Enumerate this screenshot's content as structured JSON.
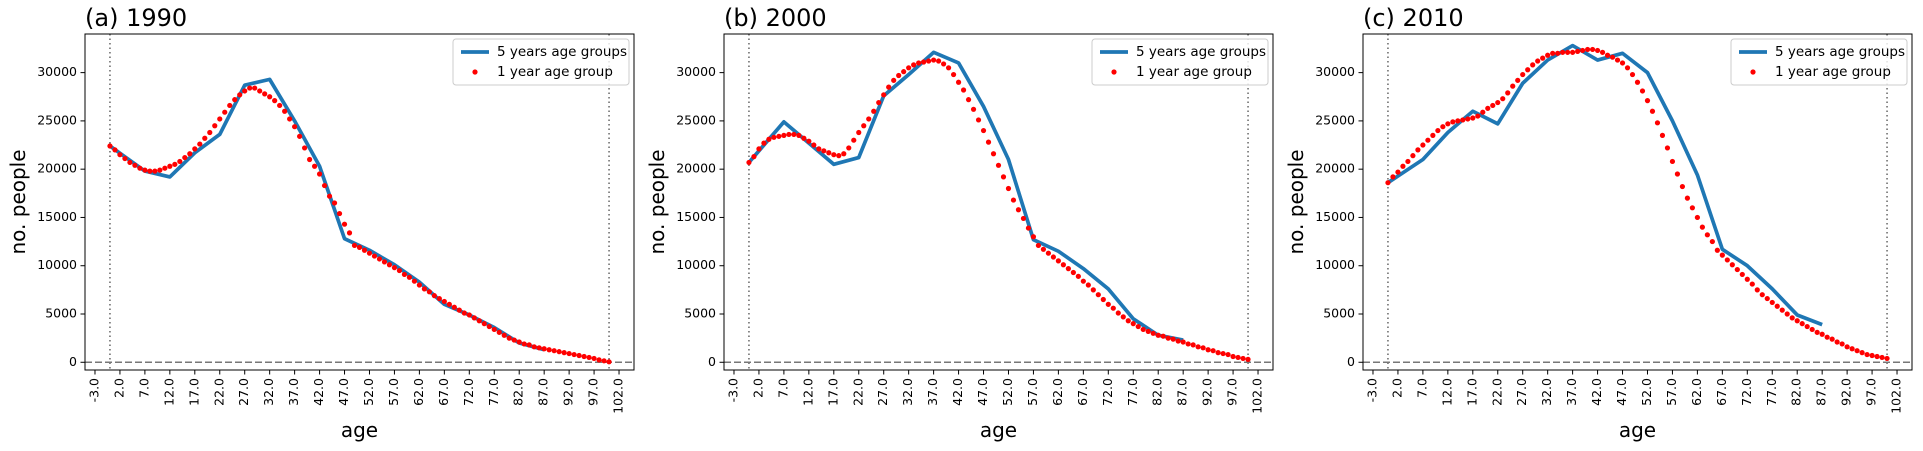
{
  "chart_data": [
    {
      "type": "line",
      "title": "(a) 1990",
      "xlabel": "age",
      "ylabel": "no. people",
      "legend": "upper right",
      "grid": false,
      "xlim": [
        -5,
        105
      ],
      "ylim": [
        -800,
        34000
      ],
      "xticks": [
        {
          "value": -3,
          "label": "-3.0"
        },
        {
          "value": 2,
          "label": "2.0"
        },
        {
          "value": 7,
          "label": "7.0"
        },
        {
          "value": 12,
          "label": "12.0"
        },
        {
          "value": 17,
          "label": "17.0"
        },
        {
          "value": 22,
          "label": "22.0"
        },
        {
          "value": 27,
          "label": "27.0"
        },
        {
          "value": 32,
          "label": "32.0"
        },
        {
          "value": 37,
          "label": "37.0"
        },
        {
          "value": 42,
          "label": "42.0"
        },
        {
          "value": 47,
          "label": "47.0"
        },
        {
          "value": 52,
          "label": "52.0"
        },
        {
          "value": 57,
          "label": "57.0"
        },
        {
          "value": 62,
          "label": "62.0"
        },
        {
          "value": 67,
          "label": "67.0"
        },
        {
          "value": 72,
          "label": "72.0"
        },
        {
          "value": 77,
          "label": "77.0"
        },
        {
          "value": 82,
          "label": "82.0"
        },
        {
          "value": 87,
          "label": "87.0"
        },
        {
          "value": 92,
          "label": "92.0"
        },
        {
          "value": 97,
          "label": "97.0"
        },
        {
          "value": 102,
          "label": "102.0"
        }
      ],
      "yticks": [
        0,
        5000,
        10000,
        15000,
        20000,
        25000,
        30000
      ],
      "xlines": [
        0,
        100
      ],
      "ylines": [
        0
      ],
      "series": [
        {
          "name": "5 years age groups",
          "type": "line",
          "color": "#1f77b4",
          "x": [
            0,
            7,
            12,
            17,
            22,
            27,
            32,
            37,
            42,
            47,
            52,
            57,
            62,
            67,
            72,
            77,
            82,
            87
          ],
          "values": [
            22400,
            19800,
            19200,
            21700,
            23600,
            28700,
            29300,
            25000,
            20300,
            12800,
            11600,
            10100,
            8300,
            6000,
            4900,
            3600,
            2000,
            1300
          ]
        },
        {
          "name": "1 year age group",
          "type": "scatter",
          "color": "#ff0000",
          "x": [
            0,
            1,
            2,
            3,
            4,
            5,
            6,
            7,
            8,
            9,
            10,
            11,
            12,
            13,
            14,
            15,
            16,
            17,
            18,
            19,
            20,
            21,
            22,
            23,
            24,
            25,
            26,
            27,
            28,
            29,
            30,
            31,
            32,
            33,
            34,
            35,
            36,
            37,
            38,
            39,
            40,
            41,
            42,
            43,
            44,
            45,
            46,
            47,
            48,
            49,
            50,
            51,
            52,
            53,
            54,
            55,
            56,
            57,
            58,
            59,
            60,
            61,
            62,
            63,
            64,
            65,
            66,
            67,
            68,
            69,
            70,
            71,
            72,
            73,
            74,
            75,
            76,
            77,
            78,
            79,
            80,
            81,
            82,
            83,
            84,
            85,
            86,
            87,
            88,
            89,
            90,
            91,
            92,
            93,
            94,
            95,
            96,
            97,
            98,
            99,
            100
          ],
          "values": [
            22400,
            22000,
            21500,
            21100,
            20700,
            20400,
            20100,
            19900,
            19800,
            19800,
            19900,
            20100,
            20300,
            20500,
            20800,
            21200,
            21600,
            22100,
            22600,
            23200,
            23800,
            24500,
            25200,
            25900,
            26600,
            27200,
            27700,
            28100,
            28400,
            28400,
            28100,
            27800,
            27500,
            27100,
            26600,
            26000,
            25200,
            24400,
            23400,
            22200,
            21000,
            20300,
            19500,
            18300,
            17200,
            16500,
            15400,
            14300,
            13400,
            12100,
            11900,
            11600,
            11300,
            11000,
            10700,
            10400,
            10100,
            9800,
            9500,
            9100,
            8800,
            8400,
            8000,
            7600,
            7300,
            6900,
            6600,
            6300,
            6000,
            5700,
            5400,
            5100,
            4900,
            4600,
            4300,
            4000,
            3700,
            3400,
            3100,
            2800,
            2500,
            2300,
            2100,
            1900,
            1800,
            1600,
            1500,
            1400,
            1300,
            1200,
            1100,
            1000,
            900,
            800,
            700,
            600,
            500,
            400,
            250,
            150,
            50
          ]
        }
      ]
    },
    {
      "type": "line",
      "title": "(b) 2000",
      "xlabel": "age",
      "ylabel": "no. people",
      "legend": "upper right",
      "grid": false,
      "xlim": [
        -5,
        105
      ],
      "ylim": [
        -800,
        34000
      ],
      "xticks": [
        {
          "value": -3,
          "label": "-3.0"
        },
        {
          "value": 2,
          "label": "2.0"
        },
        {
          "value": 7,
          "label": "7.0"
        },
        {
          "value": 12,
          "label": "12.0"
        },
        {
          "value": 17,
          "label": "17.0"
        },
        {
          "value": 22,
          "label": "22.0"
        },
        {
          "value": 27,
          "label": "27.0"
        },
        {
          "value": 32,
          "label": "32.0"
        },
        {
          "value": 37,
          "label": "37.0"
        },
        {
          "value": 42,
          "label": "42.0"
        },
        {
          "value": 47,
          "label": "47.0"
        },
        {
          "value": 52,
          "label": "52.0"
        },
        {
          "value": 57,
          "label": "57.0"
        },
        {
          "value": 62,
          "label": "62.0"
        },
        {
          "value": 67,
          "label": "67.0"
        },
        {
          "value": 72,
          "label": "72.0"
        },
        {
          "value": 77,
          "label": "77.0"
        },
        {
          "value": 82,
          "label": "82.0"
        },
        {
          "value": 87,
          "label": "87.0"
        },
        {
          "value": 92,
          "label": "92.0"
        },
        {
          "value": 97,
          "label": "97.0"
        },
        {
          "value": 102,
          "label": "102.0"
        }
      ],
      "yticks": [
        0,
        5000,
        10000,
        15000,
        20000,
        25000,
        30000
      ],
      "xlines": [
        0,
        100
      ],
      "ylines": [
        0
      ],
      "series": [
        {
          "name": "5 years age groups",
          "type": "line",
          "color": "#1f77b4",
          "x": [
            0,
            7,
            12,
            17,
            22,
            27,
            32,
            37,
            42,
            47,
            52,
            57,
            62,
            67,
            72,
            77,
            82,
            87
          ],
          "values": [
            20700,
            24900,
            22700,
            20500,
            21200,
            27600,
            29800,
            32100,
            31000,
            26500,
            21000,
            12700,
            11500,
            9700,
            7600,
            4500,
            2800,
            2300
          ]
        },
        {
          "name": "1 year age group",
          "type": "scatter",
          "color": "#ff0000",
          "x": [
            0,
            1,
            2,
            3,
            4,
            5,
            6,
            7,
            8,
            9,
            10,
            11,
            12,
            13,
            14,
            15,
            16,
            17,
            18,
            19,
            20,
            21,
            22,
            23,
            24,
            25,
            26,
            27,
            28,
            29,
            30,
            31,
            32,
            33,
            34,
            35,
            36,
            37,
            38,
            39,
            40,
            41,
            42,
            43,
            44,
            45,
            46,
            47,
            48,
            49,
            50,
            51,
            52,
            53,
            54,
            55,
            56,
            57,
            58,
            59,
            60,
            61,
            62,
            63,
            64,
            65,
            66,
            67,
            68,
            69,
            70,
            71,
            72,
            73,
            74,
            75,
            76,
            77,
            78,
            79,
            80,
            81,
            82,
            83,
            84,
            85,
            86,
            87,
            88,
            89,
            90,
            91,
            92,
            93,
            94,
            95,
            96,
            97,
            98,
            99,
            100
          ],
          "values": [
            20700,
            21300,
            22100,
            22700,
            23100,
            23300,
            23400,
            23500,
            23600,
            23600,
            23500,
            23200,
            22900,
            22500,
            22100,
            21900,
            21700,
            21500,
            21400,
            21600,
            22200,
            23000,
            23800,
            24500,
            25200,
            26000,
            26900,
            27700,
            28500,
            29200,
            29700,
            30100,
            30500,
            30800,
            31000,
            31100,
            31200,
            31300,
            31200,
            30900,
            30500,
            29800,
            29000,
            28200,
            27200,
            26200,
            25100,
            24000,
            22800,
            21600,
            20400,
            19200,
            18000,
            16800,
            15800,
            14900,
            13900,
            13000,
            12100,
            11700,
            11300,
            10900,
            10500,
            10100,
            9700,
            9300,
            8900,
            8400,
            8000,
            7500,
            7000,
            6500,
            6000,
            5600,
            5100,
            4700,
            4300,
            4000,
            3700,
            3400,
            3200,
            3000,
            2800,
            2700,
            2500,
            2400,
            2200,
            2100,
            1900,
            1800,
            1600,
            1500,
            1300,
            1200,
            1000,
            900,
            800,
            600,
            500,
            400,
            300
          ]
        }
      ]
    },
    {
      "type": "line",
      "title": "(c) 2010",
      "xlabel": "age",
      "ylabel": "no. people",
      "legend": "upper right",
      "grid": false,
      "xlim": [
        -5,
        105
      ],
      "ylim": [
        -800,
        34000
      ],
      "xticks": [
        {
          "value": -3,
          "label": "-3.0"
        },
        {
          "value": 2,
          "label": "2.0"
        },
        {
          "value": 7,
          "label": "7.0"
        },
        {
          "value": 12,
          "label": "12.0"
        },
        {
          "value": 17,
          "label": "17.0"
        },
        {
          "value": 22,
          "label": "22.0"
        },
        {
          "value": 27,
          "label": "27.0"
        },
        {
          "value": 32,
          "label": "32.0"
        },
        {
          "value": 37,
          "label": "37.0"
        },
        {
          "value": 42,
          "label": "42.0"
        },
        {
          "value": 47,
          "label": "47.0"
        },
        {
          "value": 52,
          "label": "52.0"
        },
        {
          "value": 57,
          "label": "57.0"
        },
        {
          "value": 62,
          "label": "62.0"
        },
        {
          "value": 67,
          "label": "67.0"
        },
        {
          "value": 72,
          "label": "72.0"
        },
        {
          "value": 77,
          "label": "77.0"
        },
        {
          "value": 82,
          "label": "82.0"
        },
        {
          "value": 87,
          "label": "87.0"
        },
        {
          "value": 92,
          "label": "92.0"
        },
        {
          "value": 97,
          "label": "97.0"
        },
        {
          "value": 102,
          "label": "102.0"
        }
      ],
      "yticks": [
        0,
        5000,
        10000,
        15000,
        20000,
        25000,
        30000
      ],
      "xlines": [
        0,
        100
      ],
      "ylines": [
        0
      ],
      "series": [
        {
          "name": "5 years age groups",
          "type": "line",
          "color": "#1f77b4",
          "x": [
            0,
            7,
            12,
            17,
            22,
            27,
            32,
            37,
            42,
            47,
            52,
            57,
            62,
            67,
            72,
            77,
            82,
            87
          ],
          "values": [
            18600,
            21000,
            23800,
            26000,
            24700,
            28900,
            31300,
            32800,
            31300,
            32000,
            30000,
            25000,
            19400,
            11700,
            10000,
            7600,
            4900,
            3900
          ]
        },
        {
          "name": "1 year age group",
          "type": "scatter",
          "color": "#ff0000",
          "x": [
            0,
            1,
            2,
            3,
            4,
            5,
            6,
            7,
            8,
            9,
            10,
            11,
            12,
            13,
            14,
            15,
            16,
            17,
            18,
            19,
            20,
            21,
            22,
            23,
            24,
            25,
            26,
            27,
            28,
            29,
            30,
            31,
            32,
            33,
            34,
            35,
            36,
            37,
            38,
            39,
            40,
            41,
            42,
            43,
            44,
            45,
            46,
            47,
            48,
            49,
            50,
            51,
            52,
            53,
            54,
            55,
            56,
            57,
            58,
            59,
            60,
            61,
            62,
            63,
            64,
            65,
            66,
            67,
            68,
            69,
            70,
            71,
            72,
            73,
            74,
            75,
            76,
            77,
            78,
            79,
            80,
            81,
            82,
            83,
            84,
            85,
            86,
            87,
            88,
            89,
            90,
            91,
            92,
            93,
            94,
            95,
            96,
            97,
            98,
            99,
            100
          ],
          "values": [
            18600,
            19200,
            19700,
            20300,
            20800,
            21400,
            22000,
            22500,
            23000,
            23500,
            24000,
            24400,
            24700,
            24900,
            25000,
            25100,
            25200,
            25300,
            25500,
            25900,
            26300,
            26600,
            26900,
            27300,
            27900,
            28600,
            29200,
            29800,
            30300,
            30800,
            31200,
            31500,
            31800,
            32000,
            32000,
            32100,
            32100,
            32100,
            32200,
            32300,
            32400,
            32400,
            32300,
            32100,
            31800,
            31600,
            31300,
            31000,
            30500,
            29800,
            29000,
            28100,
            27100,
            26000,
            24800,
            23500,
            22200,
            20800,
            19500,
            18200,
            17000,
            16000,
            15000,
            14000,
            13200,
            12500,
            11600,
            11100,
            10600,
            10100,
            9600,
            9100,
            8600,
            8100,
            7500,
            7000,
            6600,
            6200,
            5800,
            5400,
            5000,
            4600,
            4300,
            4000,
            3700,
            3400,
            3100,
            2900,
            2600,
            2400,
            2100,
            1900,
            1600,
            1400,
            1200,
            1000,
            800,
            700,
            600,
            500,
            400
          ]
        }
      ]
    }
  ]
}
